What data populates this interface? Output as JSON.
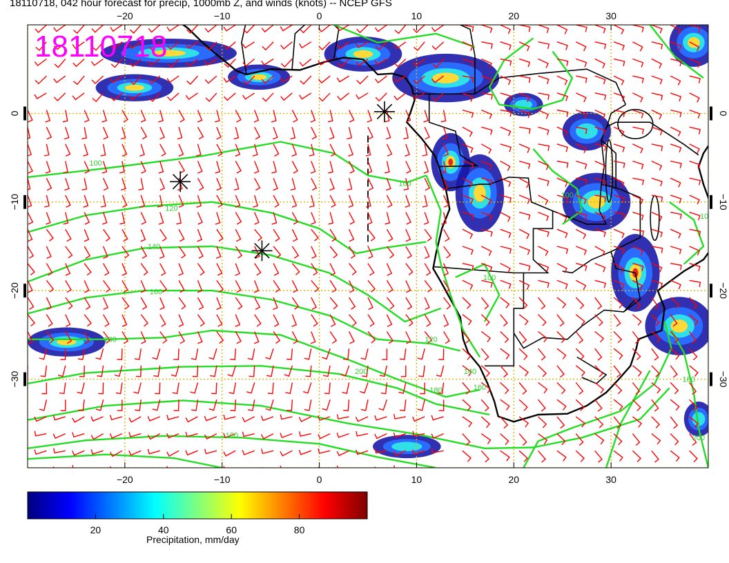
{
  "title": "18110718, 042 hour forecast for precip, 1000mb Z, and winds (knots) -- NCEP GFS",
  "stamp": "18110718",
  "map": {
    "lon_range": [
      -30,
      40
    ],
    "lat_range": [
      -40,
      10
    ],
    "lon_ticks": [
      -20,
      -10,
      0,
      10,
      20,
      30
    ],
    "lon_tick_labels": [
      "−20",
      "−10",
      "0",
      "10",
      "20",
      "30"
    ],
    "lat_ticks": [
      0,
      -10,
      -20,
      -30
    ],
    "lat_tick_labels": [
      "0",
      "−10",
      "−20",
      "−30"
    ],
    "grid": "dotted yellow",
    "contour_color": "#22dd22",
    "barb_color": "#ff0000",
    "contour_labels": [
      {
        "text": "100",
        "lon": -23.0,
        "lat": -5.9
      },
      {
        "text": "100",
        "lon": 8.8,
        "lat": -8.2
      },
      {
        "text": "120",
        "lon": -15.2,
        "lat": -11.0
      },
      {
        "text": "140",
        "lon": -17.0,
        "lat": -15.3
      },
      {
        "text": "160",
        "lon": -16.8,
        "lat": -20.4
      },
      {
        "text": "180",
        "lon": -21.5,
        "lat": -25.8
      },
      {
        "text": "200",
        "lon": 4.3,
        "lat": -29.4
      },
      {
        "text": "120",
        "lon": 11.5,
        "lat": -25.8
      },
      {
        "text": "140",
        "lon": 15.5,
        "lat": -29.4
      },
      {
        "text": "160",
        "lon": 16.5,
        "lat": -31.2
      },
      {
        "text": "180",
        "lon": 12.0,
        "lat": -31.5
      },
      {
        "text": "100",
        "lon": -9.0,
        "lat": -36.6
      },
      {
        "text": "180",
        "lon": 38.0,
        "lat": -30.3
      },
      {
        "text": "200",
        "lon": 39.0,
        "lat": -36.9
      },
      {
        "text": "100",
        "lon": 17.5,
        "lat": -18.8
      },
      {
        "text": "100",
        "lon": 25.5,
        "lat": -9.5
      },
      {
        "text": "100",
        "lon": 39.8,
        "lat": -11.9
      }
    ],
    "markers": [
      {
        "name": "star-west",
        "lon": -14.3,
        "lat": -7.7
      },
      {
        "name": "star-central",
        "lon": -5.9,
        "lat": -15.5
      },
      {
        "name": "star-coast",
        "lon": 6.7,
        "lat": 0.2
      }
    ]
  },
  "colorbar": {
    "min": 0,
    "max": 100,
    "tick_values": [
      20,
      40,
      60,
      80
    ],
    "tick_labels": [
      "20",
      "40",
      "60",
      "80"
    ],
    "caption": "Precipitation, mm/day",
    "colors": [
      "#00007f",
      "#0000ff",
      "#007fff",
      "#00ffff",
      "#7fff7f",
      "#ffff00",
      "#ff7f00",
      "#ff0000",
      "#7f0000"
    ]
  }
}
